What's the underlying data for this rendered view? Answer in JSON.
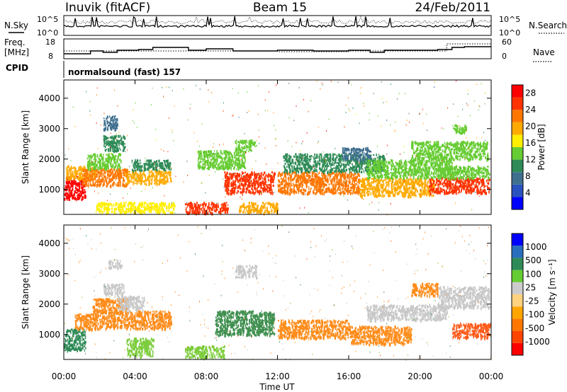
{
  "header": {
    "station": "Inuvik (fitACF)",
    "beam": "Beam 15",
    "date": "24/Feb/2011"
  },
  "panels": {
    "nsky": {
      "left_label": "N.Sky",
      "right_label": "N.Search",
      "left_ticks": [
        "10^5",
        "10^0"
      ],
      "right_ticks": [
        "10^5",
        "10^0"
      ]
    },
    "freq": {
      "left_label_1": "Freq.",
      "left_label_2": "[MHz]",
      "right_label": "Nave",
      "left_ticks": [
        "18",
        "8"
      ],
      "right_ticks": [
        "60",
        "0"
      ]
    },
    "cpid": {
      "label": "CPID",
      "program": "normalsound (fast) 157"
    }
  },
  "colors": {
    "power": [
      "#0000ff",
      "#2a52be",
      "#3f6f8f",
      "#2e8b57",
      "#66cc33",
      "#ffee00",
      "#ffaa00",
      "#ff7700",
      "#ff3300",
      "#ff0000"
    ],
    "velocity": [
      "#ff0000",
      "#ff4400",
      "#ff7700",
      "#ffa500",
      "#ffd27f",
      "#cccccc",
      "#66cc33",
      "#2e8b57",
      "#2a6ebe",
      "#0000ff"
    ]
  },
  "chart_data": [
    {
      "type": "heatmap",
      "name": "Power",
      "ylabel": "Slant Range [km]",
      "yticks": [
        1000,
        2000,
        3000,
        4000
      ],
      "ylim": [
        180,
        4600
      ],
      "xlim": [
        0,
        24
      ],
      "colorbar": {
        "label": "Power [dB]",
        "ticks": [
          "4",
          "8",
          "12",
          "16",
          "20",
          "24",
          "28"
        ],
        "range": [
          0,
          30
        ]
      },
      "regions": [
        {
          "t0": 0.0,
          "t1": 1.2,
          "r0": 700,
          "r1": 1450,
          "v": 28
        },
        {
          "t0": 0.1,
          "t1": 1.8,
          "r0": 1350,
          "r1": 1800,
          "v": 18
        },
        {
          "t0": 1.0,
          "t1": 3.6,
          "r0": 1150,
          "r1": 1700,
          "v": 22
        },
        {
          "t0": 1.3,
          "t1": 3.2,
          "r0": 1700,
          "r1": 2200,
          "v": 12
        },
        {
          "t0": 2.2,
          "t1": 3.4,
          "r0": 2300,
          "r1": 2800,
          "v": 10
        },
        {
          "t0": 2.2,
          "t1": 3.0,
          "r0": 3000,
          "r1": 3450,
          "v": 8
        },
        {
          "t0": 3.4,
          "t1": 6.0,
          "r0": 1200,
          "r1": 1650,
          "v": 20
        },
        {
          "t0": 3.8,
          "t1": 6.0,
          "r0": 1650,
          "r1": 2000,
          "v": 10
        },
        {
          "t0": 1.8,
          "t1": 6.2,
          "r0": 250,
          "r1": 600,
          "v": 16
        },
        {
          "t0": 6.8,
          "t1": 9.2,
          "r0": 250,
          "r1": 600,
          "v": 26
        },
        {
          "t0": 7.5,
          "t1": 10.2,
          "r0": 1700,
          "r1": 2300,
          "v": 12
        },
        {
          "t0": 9.0,
          "t1": 11.8,
          "r0": 900,
          "r1": 1600,
          "v": 26
        },
        {
          "t0": 9.6,
          "t1": 10.8,
          "r0": 2300,
          "r1": 2650,
          "v": 14
        },
        {
          "t0": 9.8,
          "t1": 12.0,
          "r0": 250,
          "r1": 600,
          "v": 18
        },
        {
          "t0": 12.0,
          "t1": 16.6,
          "r0": 900,
          "r1": 1600,
          "v": 22
        },
        {
          "t0": 12.3,
          "t1": 18.0,
          "r0": 1600,
          "r1": 2200,
          "v": 10
        },
        {
          "t0": 15.6,
          "t1": 17.2,
          "r0": 2000,
          "r1": 2400,
          "v": 8
        },
        {
          "t0": 16.6,
          "t1": 20.8,
          "r0": 800,
          "r1": 1400,
          "v": 20
        },
        {
          "t0": 17.0,
          "t1": 21.8,
          "r0": 1400,
          "r1": 2000,
          "v": 12
        },
        {
          "t0": 19.5,
          "t1": 23.8,
          "r0": 2000,
          "r1": 2600,
          "v": 12
        },
        {
          "t0": 20.5,
          "t1": 23.9,
          "r0": 900,
          "r1": 1400,
          "v": 24
        },
        {
          "t0": 21.0,
          "t1": 23.9,
          "r0": 1400,
          "r1": 1800,
          "v": 12
        },
        {
          "t0": 21.8,
          "t1": 22.6,
          "r0": 2900,
          "r1": 3150,
          "v": 14
        }
      ]
    },
    {
      "type": "heatmap",
      "name": "Velocity",
      "ylabel": "Slant Range [km]",
      "yticks": [
        1000,
        2000,
        3000,
        4000
      ],
      "ylim": [
        180,
        4600
      ],
      "xlim": [
        0,
        24
      ],
      "colorbar": {
        "label": "Velocity [m s⁻¹]",
        "ticks": [
          "-1000",
          "-500",
          "-100",
          "-25",
          "25",
          "100",
          "500",
          "1000"
        ]
      },
      "regions": [
        {
          "t0": 0.0,
          "t1": 1.2,
          "r0": 500,
          "r1": 1200,
          "v": "green"
        },
        {
          "t0": 0.6,
          "t1": 1.8,
          "r0": 1200,
          "r1": 1700,
          "v": "orange"
        },
        {
          "t0": 1.6,
          "t1": 3.6,
          "r0": 1200,
          "r1": 2200,
          "v": "orange"
        },
        {
          "t0": 2.2,
          "t1": 3.4,
          "r0": 2300,
          "r1": 2700,
          "v": "grey"
        },
        {
          "t0": 2.5,
          "t1": 3.2,
          "r0": 3200,
          "r1": 3500,
          "v": "grey"
        },
        {
          "t0": 3.6,
          "t1": 6.0,
          "r0": 1200,
          "r1": 1800,
          "v": "orange"
        },
        {
          "t0": 3.0,
          "t1": 4.5,
          "r0": 1800,
          "r1": 2300,
          "v": "grey"
        },
        {
          "t0": 3.5,
          "t1": 5.0,
          "r0": 300,
          "r1": 900,
          "v": "lgreen"
        },
        {
          "t0": 6.8,
          "t1": 9.0,
          "r0": 250,
          "r1": 650,
          "v": "lgreen"
        },
        {
          "t0": 8.5,
          "t1": 11.8,
          "r0": 1000,
          "r1": 1800,
          "v": "dgreen"
        },
        {
          "t0": 9.6,
          "t1": 10.8,
          "r0": 2900,
          "r1": 3300,
          "v": "grey"
        },
        {
          "t0": 12.0,
          "t1": 16.0,
          "r0": 900,
          "r1": 1500,
          "v": "orange"
        },
        {
          "t0": 16.0,
          "t1": 19.5,
          "r0": 700,
          "r1": 1300,
          "v": "orange"
        },
        {
          "t0": 17.0,
          "t1": 21.5,
          "r0": 1500,
          "r1": 2000,
          "v": "grey"
        },
        {
          "t0": 21.0,
          "t1": 23.9,
          "r0": 1900,
          "r1": 2600,
          "v": "grey"
        },
        {
          "t0": 21.8,
          "t1": 23.9,
          "r0": 900,
          "r1": 1400,
          "v": "dorange"
        },
        {
          "t0": 19.5,
          "t1": 21.0,
          "r0": 2300,
          "r1": 2700,
          "v": "orange"
        }
      ]
    }
  ],
  "xaxis": {
    "label": "Time UT",
    "ticks": [
      "00:00",
      "04:00",
      "08:00",
      "12:00",
      "16:00",
      "20:00",
      "00:00"
    ]
  }
}
